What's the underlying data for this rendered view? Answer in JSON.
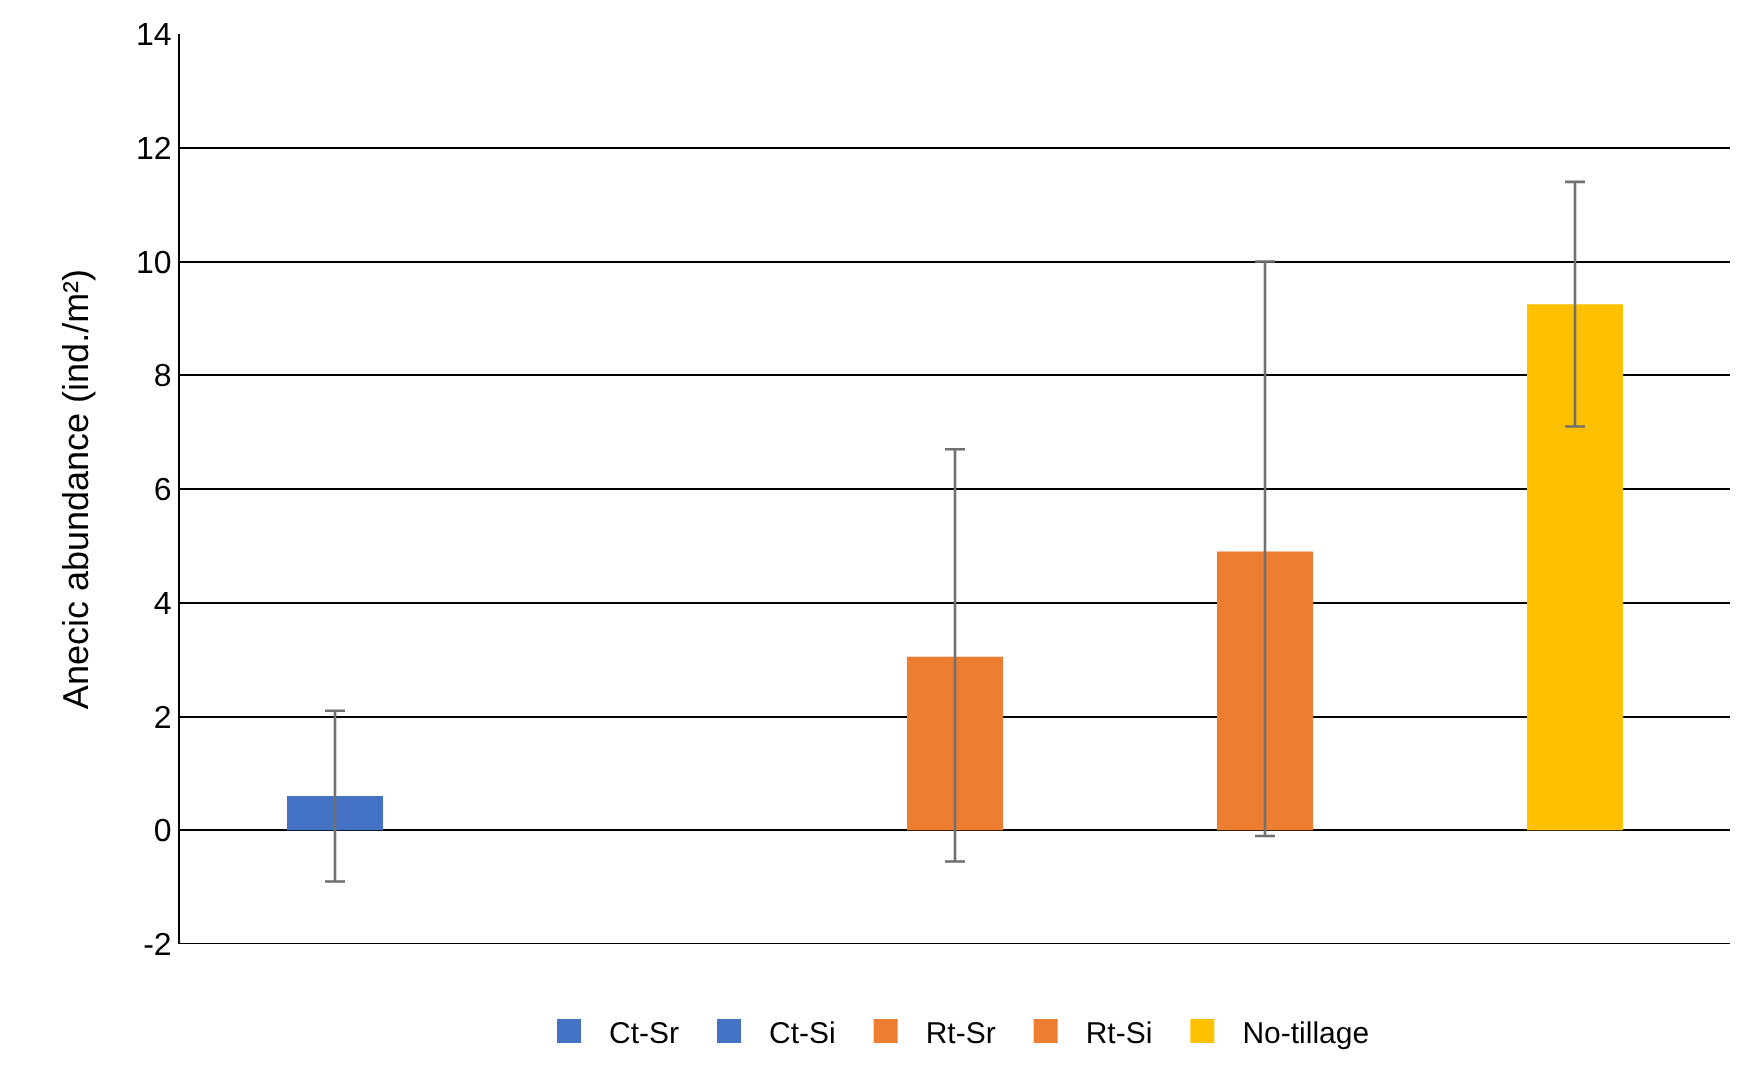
{
  "chart_data": {
    "type": "bar",
    "ylabel": "Anecic abundance (ind./m²)",
    "categories": [
      null,
      null,
      null,
      null,
      null
    ],
    "series": [
      {
        "name": "Ct-Sr",
        "color": "#4472c4",
        "values": [
          0.6,
          null,
          null,
          null,
          null
        ],
        "errors": [
          [
            -0.9,
            2.1
          ],
          null,
          null,
          null,
          null
        ]
      },
      {
        "name": "Ct-Si",
        "color": "#4472c4",
        "values": [
          null,
          0,
          null,
          null,
          null
        ]
      },
      {
        "name": "Rt-Sr",
        "color": "#ed7d31",
        "values": [
          null,
          null,
          3.05,
          null,
          null
        ],
        "errors": [
          null,
          null,
          [
            -0.55,
            6.7
          ],
          null,
          null
        ]
      },
      {
        "name": "Rt-Si",
        "color": "#ed7d31",
        "values": [
          null,
          null,
          null,
          4.9,
          null
        ],
        "errors": [
          null,
          null,
          null,
          [
            -0.1,
            10
          ],
          null
        ]
      },
      {
        "name": "No-tillage",
        "color": "#ffc000",
        "values": [
          null,
          null,
          null,
          null,
          9.25
        ],
        "errors": [
          null,
          null,
          null,
          null,
          [
            7.1,
            11.4
          ]
        ]
      }
    ],
    "ylim": [
      -2,
      14
    ],
    "yticks": [
      -2,
      0,
      2,
      4,
      6,
      8,
      10,
      12,
      14
    ],
    "grid": "y",
    "legend": "bottom"
  }
}
